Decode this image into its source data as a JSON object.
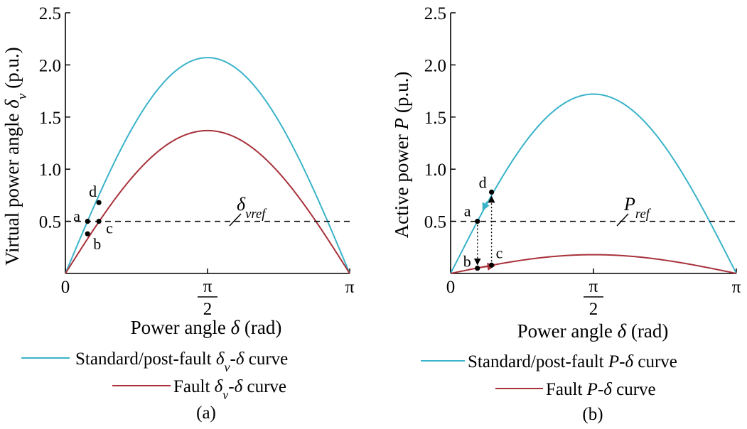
{
  "chart_data": [
    {
      "type": "line",
      "panel_label": "(a)",
      "xlabel": "Power angle δ (rad)",
      "ylabel": "Virtual power angle δv (p.u.)",
      "xlim": [
        0,
        3.14159
      ],
      "ylim": [
        0,
        2.5
      ],
      "x_ticks": [
        {
          "value": 0,
          "label": "0"
        },
        {
          "value": 1.5708,
          "label": "π/2"
        },
        {
          "value": 3.14159,
          "label": "π"
        }
      ],
      "y_ticks": [
        {
          "value": 0.5,
          "label": "0.5"
        },
        {
          "value": 1.0,
          "label": "1.0"
        },
        {
          "value": 1.5,
          "label": "1.5"
        },
        {
          "value": 2.0,
          "label": "2.0"
        },
        {
          "value": 2.5,
          "label": "2.5"
        }
      ],
      "series": [
        {
          "name": "Standard/post-fault δv-δ curve",
          "function": "sin",
          "amplitude": 2.07,
          "color": "#3ab3c9"
        },
        {
          "name": "Fault δv-δ curve",
          "function": "sin",
          "amplitude": 1.37,
          "color": "#a8313a"
        }
      ],
      "reference_line": {
        "label": "δvref",
        "value": 0.5,
        "style": "dashed"
      },
      "points": [
        {
          "label": "a",
          "x": 0.245,
          "y": 0.5
        },
        {
          "label": "b",
          "x": 0.245,
          "y": 0.38
        },
        {
          "label": "c",
          "x": 0.37,
          "y": 0.5
        },
        {
          "label": "d",
          "x": 0.37,
          "y": 0.68
        }
      ],
      "legend": "bottom"
    },
    {
      "type": "line",
      "panel_label": "(b)",
      "xlabel": "Power angle δ (rad)",
      "ylabel": "Active power P (p.u.)",
      "xlim": [
        0,
        3.14159
      ],
      "ylim": [
        0,
        2.5
      ],
      "x_ticks": [
        {
          "value": 0,
          "label": "0"
        },
        {
          "value": 1.5708,
          "label": "π/2"
        },
        {
          "value": 3.14159,
          "label": "π"
        }
      ],
      "y_ticks": [
        {
          "value": 0.5,
          "label": "0.5"
        },
        {
          "value": 1.0,
          "label": "1.0"
        },
        {
          "value": 1.5,
          "label": "1.5"
        },
        {
          "value": 2.0,
          "label": "2.0"
        },
        {
          "value": 2.5,
          "label": "2.5"
        }
      ],
      "series": [
        {
          "name": "Standard/post-fault P-δ curve",
          "function": "sin",
          "amplitude": 1.72,
          "color": "#3ab3c9"
        },
        {
          "name": "Fault P-δ curve",
          "function": "sin",
          "amplitude": 0.18,
          "color": "#a8313a"
        }
      ],
      "reference_line": {
        "label": "Pref",
        "value": 0.5,
        "style": "dashed"
      },
      "points": [
        {
          "label": "a",
          "x": 0.295,
          "y": 0.5
        },
        {
          "label": "b",
          "x": 0.295,
          "y": 0.05
        },
        {
          "label": "c",
          "x": 0.45,
          "y": 0.08
        },
        {
          "label": "d",
          "x": 0.45,
          "y": 0.78
        }
      ],
      "legend": "bottom"
    }
  ]
}
